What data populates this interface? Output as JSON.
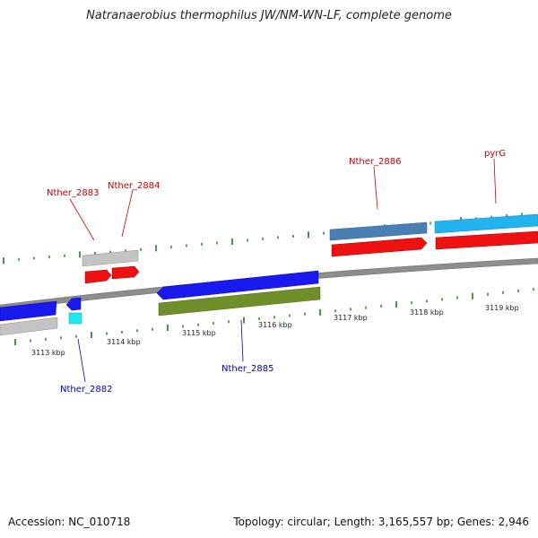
{
  "title": "Natranaerobius thermophilus JW/NM-WN-LF, complete genome",
  "footer": {
    "accession": "Accession: NC_010718",
    "summary": "Topology: circular; Length: 3,165,557 bp; Genes: 2,946"
  },
  "colors": {
    "backbone": "#8a8a8a",
    "forward_label": "#cc0000",
    "reverse_label": "#0000bb",
    "tick": "#1a7a1a"
  },
  "ticks": [
    {
      "label": "3113 kbp"
    },
    {
      "label": "3114 kbp"
    },
    {
      "label": "3115 kbp"
    },
    {
      "label": "3116 kbp"
    },
    {
      "label": "3117 kbp"
    },
    {
      "label": "3118 kbp"
    },
    {
      "label": "3119 kbp"
    }
  ],
  "genes": [
    {
      "label": "Nther_2882",
      "strand": "reverse"
    },
    {
      "label": "Nther_2883",
      "strand": "forward"
    },
    {
      "label": "Nther_2884",
      "strand": "forward"
    },
    {
      "label": "Nther_2885",
      "strand": "reverse"
    },
    {
      "label": "Nther_2886",
      "strand": "forward"
    },
    {
      "label": "pyrG",
      "strand": "forward"
    }
  ]
}
